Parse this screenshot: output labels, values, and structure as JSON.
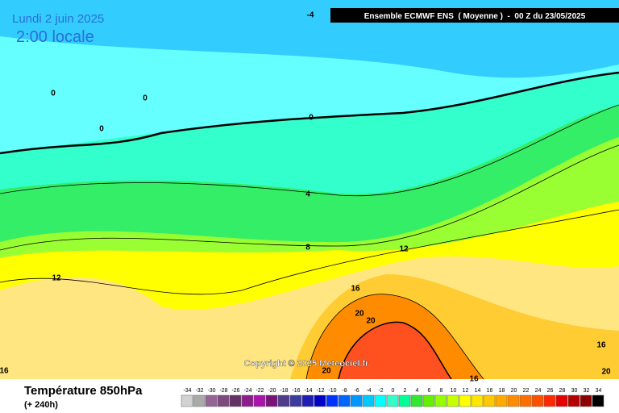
{
  "header": {
    "date": "Lundi 2 juin 2025",
    "time": "2:00 locale",
    "run": "Ensemble ECMWF ENS  ( Moyenne )  -  00 Z du 23/05/2025",
    "copyright": "Copyright © 2025 Meteociel.fr"
  },
  "map": {
    "contour_labels": [
      -4,
      0,
      0,
      0,
      0,
      4,
      8,
      12,
      12,
      16,
      20,
      20,
      16,
      20,
      16,
      16,
      20
    ]
  },
  "footer": {
    "title": "Température 850hPa",
    "lead": "(+ 240h)"
  },
  "legend": {
    "ticks": [
      -34,
      -32,
      -30,
      -28,
      -26,
      -24,
      -22,
      -20,
      -18,
      -16,
      -14,
      -12,
      -10,
      -8,
      -6,
      -4,
      -2,
      0,
      2,
      4,
      6,
      8,
      10,
      12,
      14,
      16,
      18,
      20,
      22,
      24,
      26,
      28,
      30,
      32,
      34
    ],
    "colors": [
      "#d2d2d2",
      "#aaaaaa",
      "#966496",
      "#7d4b7d",
      "#643264",
      "#8c1e8c",
      "#aa14aa",
      "#781478",
      "#503c8c",
      "#3c3ca0",
      "#1e1eb4",
      "#0000c8",
      "#0032ff",
      "#0064ff",
      "#0096ff",
      "#00c8ff",
      "#00ffff",
      "#32ffc8",
      "#00ff96",
      "#32e632",
      "#64f000",
      "#96ff00",
      "#c8ff00",
      "#ffff00",
      "#ffe600",
      "#ffc800",
      "#ffaa00",
      "#ff8c00",
      "#ff6e00",
      "#ff5000",
      "#ff2800",
      "#e60000",
      "#b40000",
      "#8c0000",
      "#000000"
    ]
  }
}
